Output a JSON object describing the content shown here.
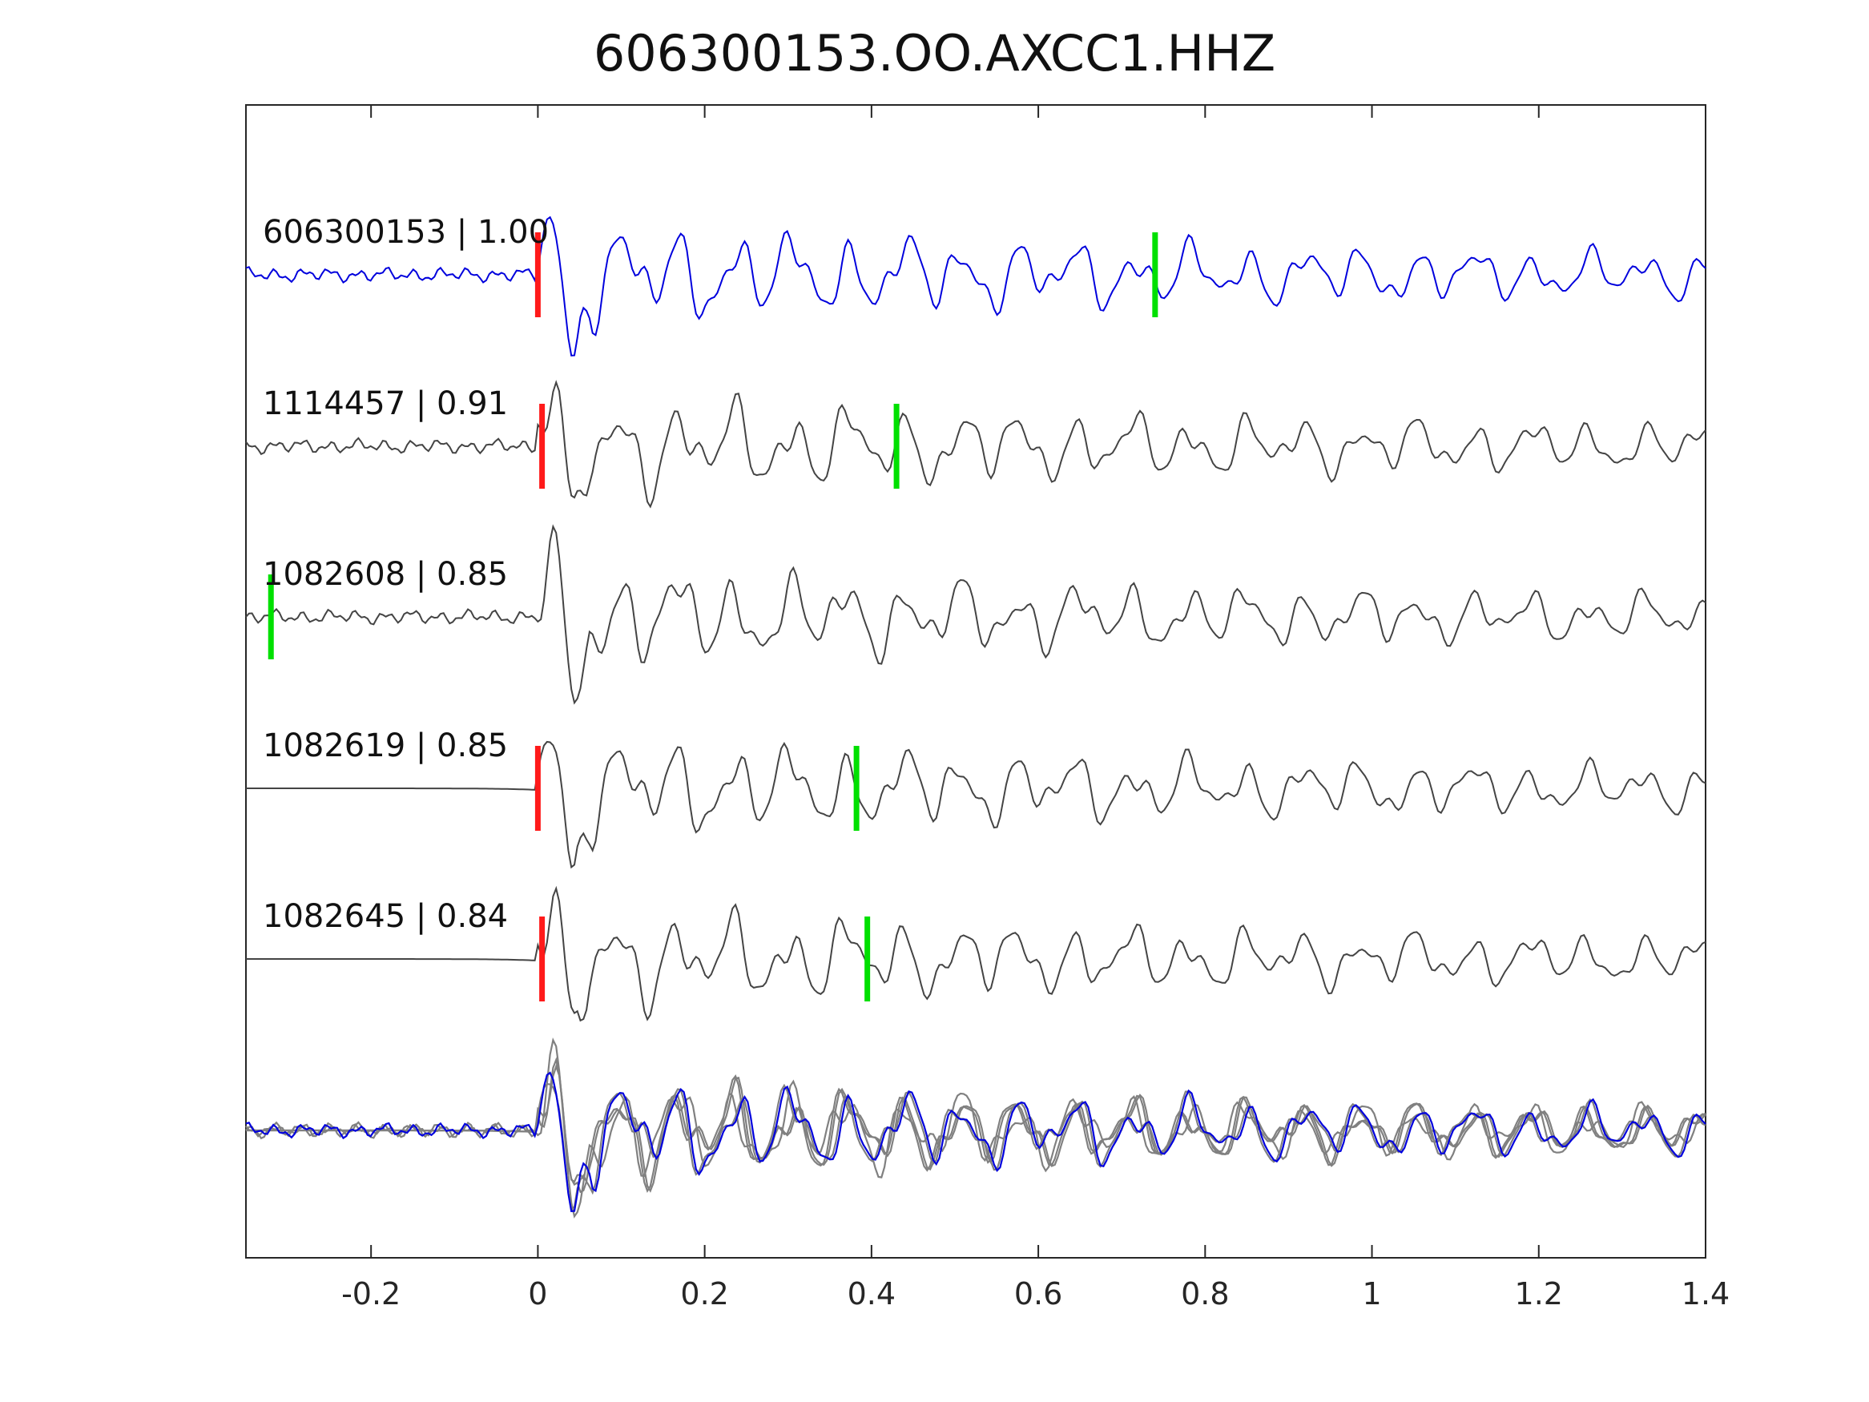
{
  "chart_data": {
    "type": "line",
    "title": "606300153.OO.AXCC1.HHZ",
    "xlabel": "",
    "ylabel": "",
    "xlim": [
      -0.35,
      1.4
    ],
    "xticks": [
      -0.2,
      0,
      0.2,
      0.4,
      0.6,
      0.8,
      1,
      1.2,
      1.4
    ],
    "xtick_labels": [
      "-0.2",
      "0",
      "0.2",
      "0.4",
      "0.6",
      "0.8",
      "1",
      "1.2",
      "1.4"
    ],
    "grid": false,
    "colors": {
      "reference": "#0000dd",
      "match": "#444444",
      "overlay": "#808080",
      "p_pick": "#ff1a1a",
      "s_pick": "#00e000"
    },
    "traces": [
      {
        "label": "606300153 | 1.00",
        "event_id": "606300153",
        "cc": 1.0,
        "color": "blue",
        "pre_event": "noisy",
        "p_pick": 0.0,
        "s_pick": 0.74
      },
      {
        "label": "1114457 | 0.91",
        "event_id": "1114457",
        "cc": 0.91,
        "color": "gray",
        "pre_event": "noisy",
        "p_pick": 0.005,
        "s_pick": 0.43
      },
      {
        "label": "1082608 | 0.85",
        "event_id": "1082608",
        "cc": 0.85,
        "color": "gray",
        "pre_event": "noisy",
        "p_pick": null,
        "s_pick": -0.32
      },
      {
        "label": "1082619 | 0.85",
        "event_id": "1082619",
        "cc": 0.85,
        "color": "gray",
        "pre_event": "flat",
        "p_pick": 0.0,
        "s_pick": 0.382
      },
      {
        "label": "1082645 | 0.84",
        "event_id": "1082645",
        "cc": 0.84,
        "color": "gray",
        "pre_event": "flat",
        "p_pick": 0.005,
        "s_pick": 0.395
      }
    ],
    "overlay": {
      "description_series": [
        "606300153",
        "1114457",
        "1082608",
        "1082619",
        "1082645"
      ]
    }
  }
}
